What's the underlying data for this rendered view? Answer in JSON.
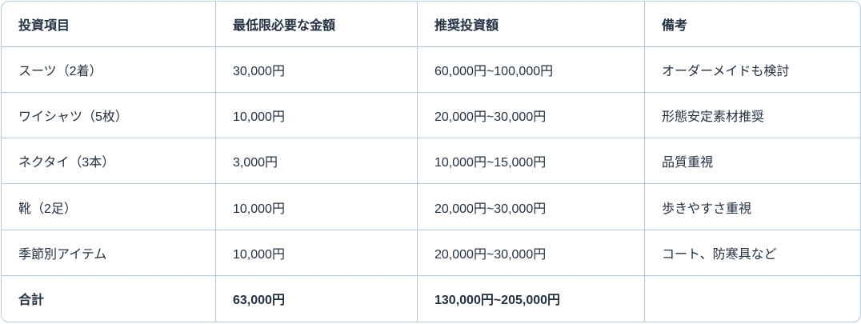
{
  "table": {
    "columns": [
      "投資項目",
      "最低限必要な金額",
      "推奨投資額",
      "備考"
    ],
    "rows": [
      [
        "スーツ（2着）",
        "30,000円",
        "60,000円~100,000円",
        "オーダーメイドも検討"
      ],
      [
        "ワイシャツ（5枚）",
        "10,000円",
        "20,000円~30,000円",
        "形態安定素材推奨"
      ],
      [
        "ネクタイ（3本）",
        "3,000円",
        "10,000円~15,000円",
        "品質重視"
      ],
      [
        "靴（2足）",
        "10,000円",
        "20,000円~30,000円",
        "歩きやすさ重視"
      ],
      [
        "季節別アイテム",
        "10,000円",
        "20,000円~30,000円",
        "コート、防寒具など"
      ]
    ],
    "footer": [
      "合計",
      "63,000円",
      "130,000円~205,000円",
      ""
    ]
  },
  "colors": {
    "border": "#b6cbdb",
    "text": "#233142",
    "background": "#ffffff"
  }
}
